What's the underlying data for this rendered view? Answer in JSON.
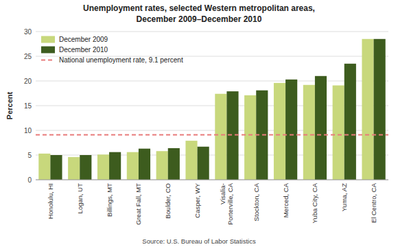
{
  "chart_data": {
    "type": "bar",
    "title": "Unemployment rates, selected Western metropolitan areas,",
    "subtitle": "December  2009–December 2010",
    "y_label": "Percent",
    "source": "Source: U.S. Bureau of Labor Statistics",
    "categories": [
      "Honolulu, HI",
      "Logan, UT",
      "Billings, MT",
      "Great Fall, MT",
      "Boulder, CO",
      "Casper, WY",
      "Visalia-\nPorterville, CA",
      "Stockton, CA",
      "Merced, CA",
      "Yuba City, CA",
      "Yuma, AZ",
      "El Centro, CA"
    ],
    "series": [
      {
        "name": "December 2009",
        "color": "#c8d87c",
        "values": [
          5.3,
          4.6,
          5.1,
          5.6,
          5.8,
          7.9,
          17.4,
          17.1,
          19.6,
          19.2,
          19.1,
          28.5
        ]
      },
      {
        "name": "December 2010",
        "color": "#3d5c1e",
        "values": [
          5.0,
          5.0,
          5.6,
          6.3,
          6.4,
          6.7,
          17.9,
          18.1,
          20.3,
          21.0,
          23.5,
          28.5
        ]
      }
    ],
    "reference_line": {
      "value": 9.1,
      "label": "National unemployment rate, 9.1 percent",
      "color": "#e87a7a"
    },
    "ylim": [
      0,
      30
    ],
    "yticks": [
      0,
      5,
      10,
      15,
      20,
      25,
      30
    ],
    "grid": true,
    "legend": "upper left"
  }
}
